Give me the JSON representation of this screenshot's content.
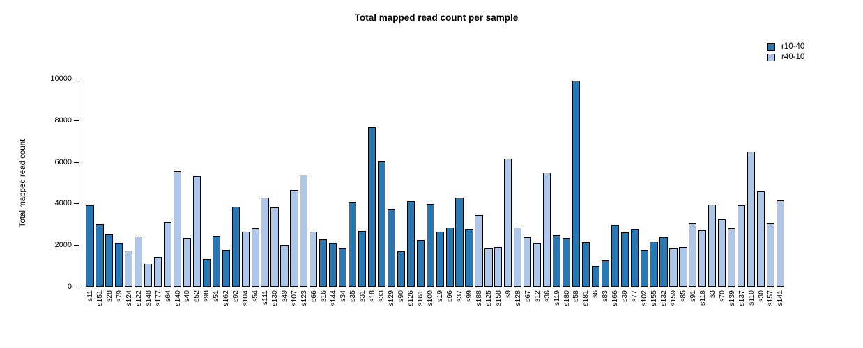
{
  "chart_data": {
    "type": "bar",
    "title": "Total mapped read count per sample",
    "xlabel": "",
    "ylabel": "Total mapped read count",
    "ylim": [
      0,
      10000
    ],
    "yticks": [
      0,
      2000,
      4000,
      6000,
      8000,
      10000
    ],
    "grid": false,
    "legend_position": "top-right",
    "legend": [
      {
        "name": "r10-40",
        "color": "#2878b4"
      },
      {
        "name": "r40-10",
        "color": "#aec6e8"
      }
    ],
    "bar_edge_color": "#000000",
    "categories": [
      "s11",
      "s151",
      "s28",
      "s79",
      "s124",
      "s122",
      "s148",
      "s177",
      "s64",
      "s140",
      "s40",
      "s52",
      "s98",
      "s51",
      "s162",
      "s92",
      "s104",
      "s54",
      "s111",
      "s130",
      "s49",
      "s107",
      "s123",
      "s66",
      "s16",
      "s144",
      "s34",
      "s35",
      "s31",
      "s18",
      "s33",
      "s129",
      "s90",
      "s126",
      "s161",
      "s100",
      "s19",
      "s96",
      "s37",
      "s99",
      "s188",
      "s125",
      "s158",
      "s9",
      "s128",
      "s67",
      "s12",
      "s36",
      "s119",
      "s180",
      "s58",
      "s181",
      "s6",
      "s83",
      "s166",
      "s39",
      "s77",
      "s102",
      "s155",
      "s132",
      "s159",
      "s85",
      "s91",
      "s118",
      "s3",
      "s70",
      "s139",
      "s137",
      "s110",
      "s30",
      "s157",
      "s141"
    ],
    "values": [
      3900,
      3000,
      2550,
      2100,
      1750,
      2400,
      1100,
      1450,
      3100,
      5550,
      2350,
      5330,
      1350,
      2430,
      1760,
      3840,
      2630,
      2800,
      4280,
      3820,
      2000,
      4650,
      5390,
      2630,
      2260,
      2100,
      1840,
      4080,
      2670,
      7670,
      6030,
      3720,
      1700,
      4100,
      2250,
      3980,
      2640,
      2850,
      4280,
      2760,
      3460,
      1840,
      1910,
      6160,
      2850,
      2370,
      2110,
      5490,
      2470,
      2340,
      9900,
      2150,
      1000,
      1260,
      2970,
      2600,
      2780,
      1760,
      2180,
      2390,
      1840,
      1920,
      3030,
      2710,
      3940,
      3230,
      2820,
      3900,
      6500,
      4590,
      3040,
      4150
    ],
    "group_index": [
      0,
      0,
      0,
      0,
      1,
      1,
      1,
      1,
      1,
      1,
      1,
      1,
      0,
      0,
      0,
      0,
      1,
      1,
      1,
      1,
      1,
      1,
      1,
      1,
      0,
      0,
      0,
      0,
      0,
      0,
      0,
      0,
      0,
      0,
      0,
      0,
      0,
      0,
      0,
      0,
      1,
      1,
      1,
      1,
      1,
      1,
      1,
      1,
      0,
      0,
      0,
      0,
      0,
      0,
      0,
      0,
      0,
      0,
      0,
      0,
      1,
      1,
      1,
      1,
      1,
      1,
      1,
      1,
      1,
      1,
      1,
      1
    ]
  }
}
